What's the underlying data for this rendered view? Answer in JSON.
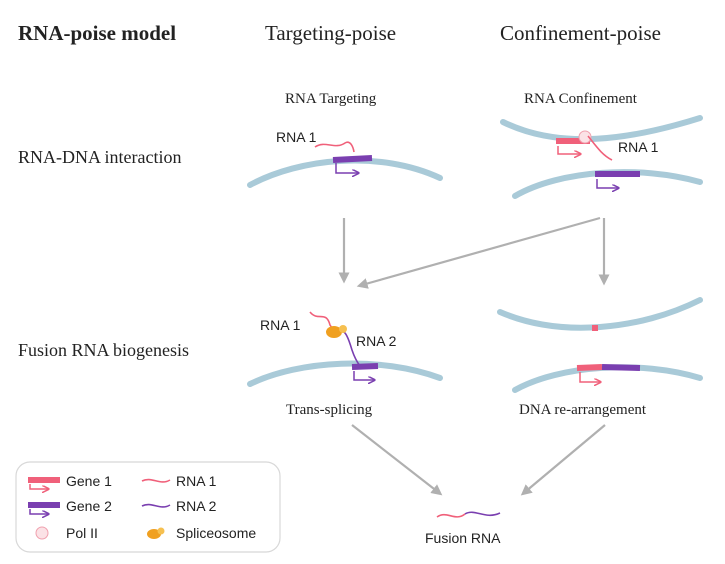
{
  "title": "RNA-poise model",
  "columns": {
    "targeting": "Targeting-poise",
    "confinement": "Confinement-poise"
  },
  "rows": {
    "interaction": "RNA-DNA interaction",
    "biogenesis": "Fusion RNA biogenesis"
  },
  "panels": {
    "rna_targeting": "RNA Targeting",
    "rna_confinement": "RNA Confinement",
    "trans_splicing": "Trans-splicing",
    "dna_rearrangement": "DNA re-arrangement",
    "fusion_rna": "Fusion RNA"
  },
  "labels": {
    "rna1": "RNA 1",
    "rna2": "RNA 2"
  },
  "legend": {
    "gene1": "Gene 1",
    "gene2": "Gene 2",
    "rna1": "RNA 1",
    "rna2": "RNA 2",
    "pol2": "Pol II",
    "spliceosome": "Spliceosome"
  },
  "colors": {
    "dna": "#a9cad8",
    "gene1": "#f0607a",
    "gene2": "#7a3fb0",
    "arrow": "#b0b0b0",
    "spliceosome": "#f0a020"
  }
}
